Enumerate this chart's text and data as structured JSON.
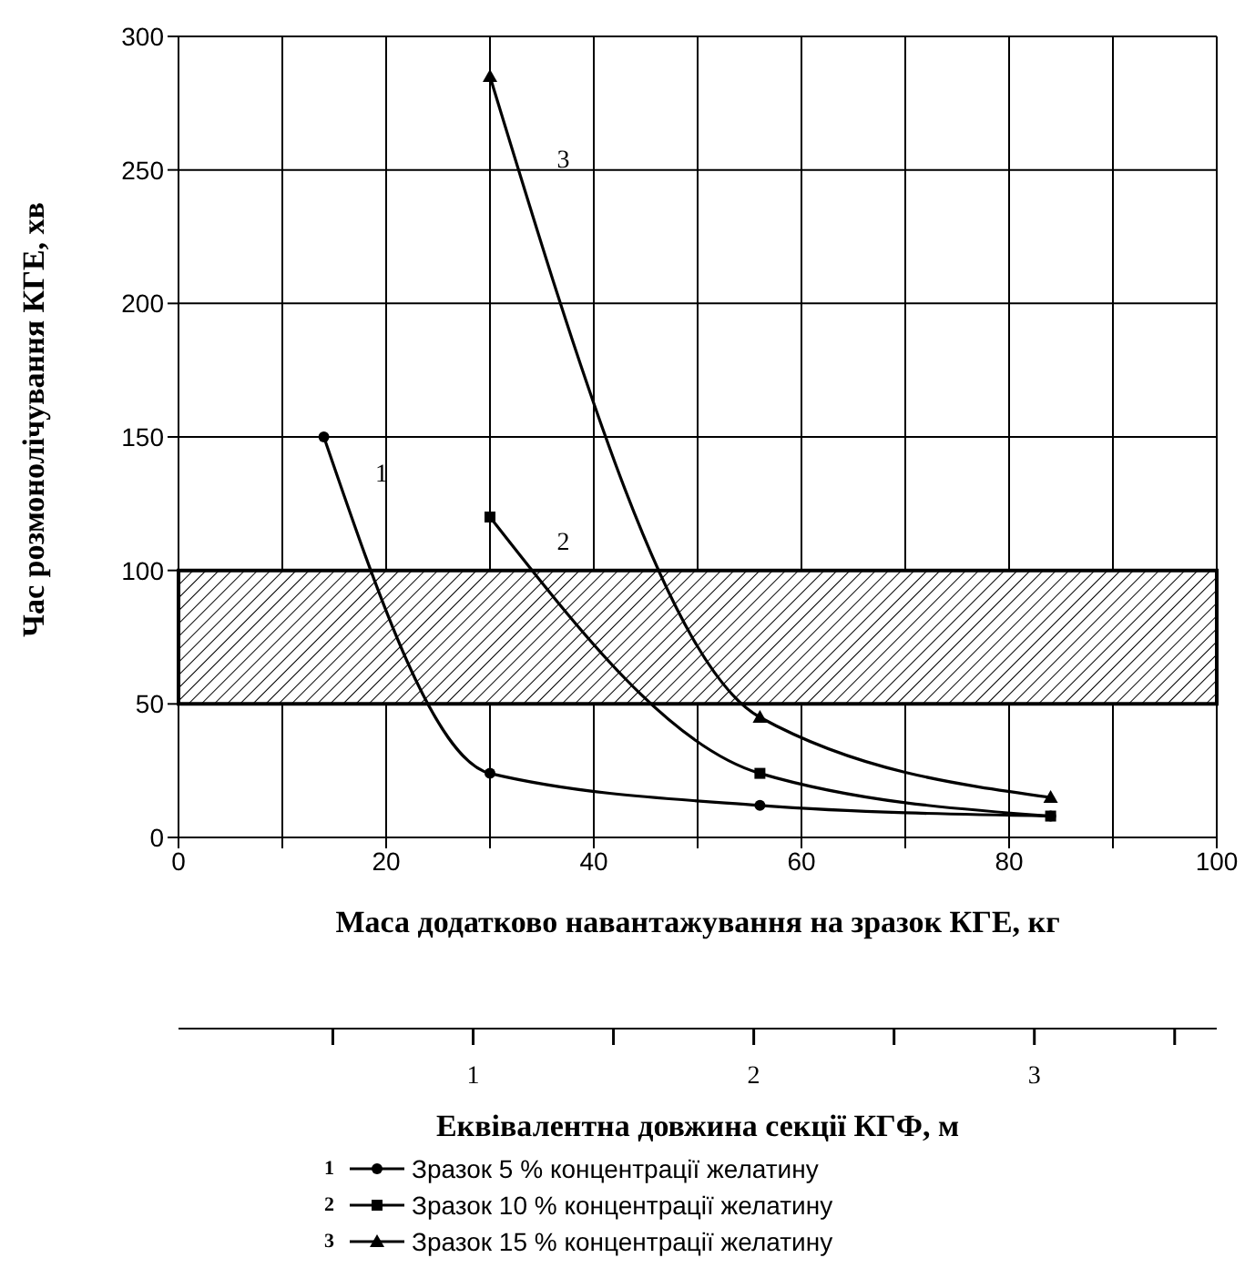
{
  "chart_data": {
    "type": "line",
    "xlabel": "Маса додатково навантажування на зразок КГЕ, кг",
    "ylabel": "Час розмонолічування КГЕ, хв",
    "x2label": "Еквівалентна довжина секції КГФ, м",
    "series": [
      {
        "name": "Зразок 5 % концентрації желатину",
        "color": "#000000",
        "marker": "circle",
        "x": [
          14,
          30,
          56,
          84
        ],
        "values": [
          150,
          24,
          12,
          8
        ]
      },
      {
        "name": "Зразок 10 % концентрації желатину",
        "color": "#000000",
        "marker": "square",
        "x": [
          30,
          56,
          84
        ],
        "values": [
          120,
          24,
          8
        ]
      },
      {
        "name": "Зразок 15 % концентрації желатину",
        "color": "#000000",
        "marker": "triangle",
        "x": [
          30,
          56,
          84
        ],
        "values": [
          285,
          45,
          15
        ]
      }
    ],
    "annotations": [
      "1",
      "2",
      "3"
    ],
    "bands": [
      {
        "axis": "y",
        "from": 50,
        "to": 100,
        "color": "#000000"
      }
    ],
    "xlim": [
      0,
      100
    ],
    "xticks": [
      0,
      {
        "value": 10,
        "label": null
      },
      20,
      {
        "value": 30,
        "label": null
      },
      40,
      {
        "value": 50,
        "label": null
      },
      60,
      {
        "value": 70,
        "label": null
      },
      80,
      {
        "value": 90,
        "label": null
      },
      100
    ],
    "ylim": [
      0,
      300
    ],
    "yticks": [
      0,
      50,
      100,
      150,
      200,
      250,
      300
    ],
    "x2lim": [
      -0.05,
      3.65
    ],
    "x2ticks": [
      1,
      2,
      3
    ],
    "grid": true,
    "legend": "bottom",
    "line_style": "solid"
  }
}
